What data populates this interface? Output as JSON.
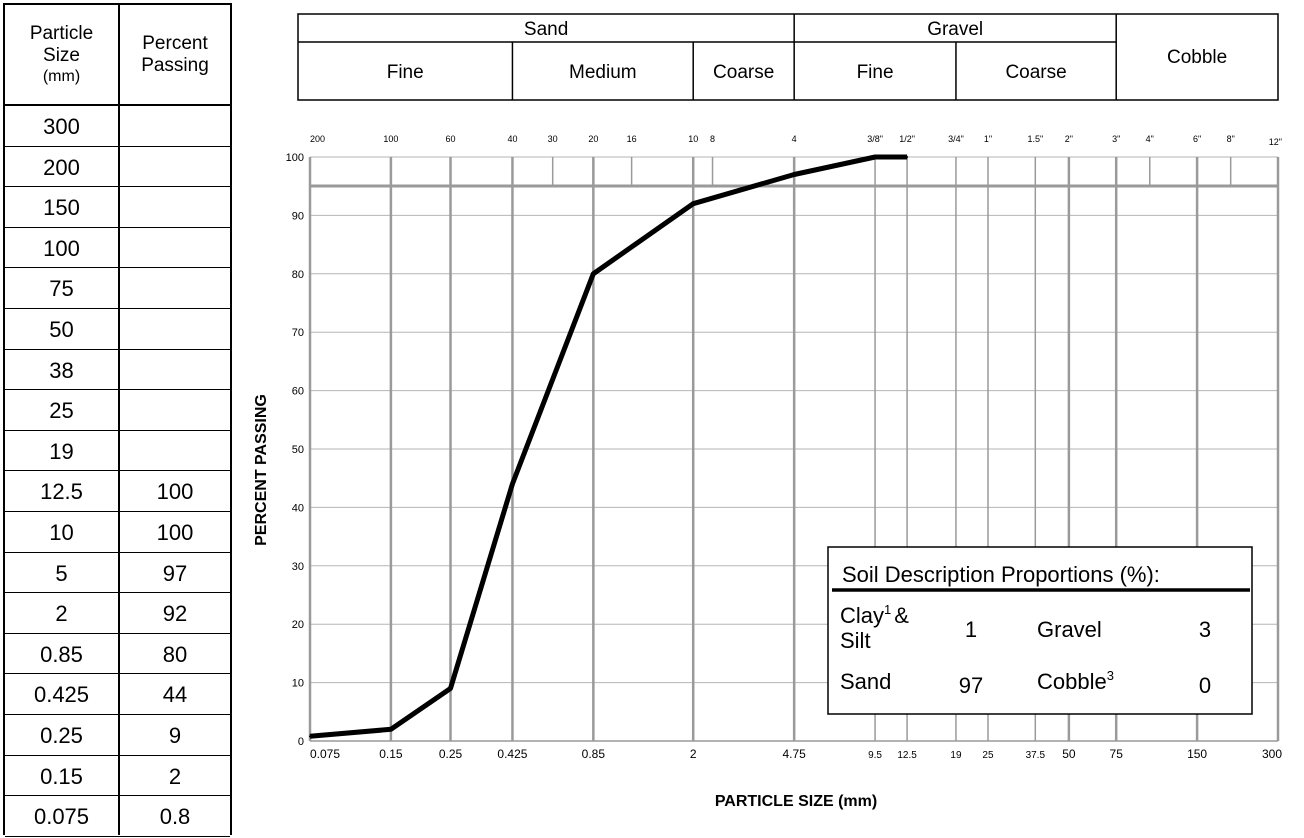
{
  "table": {
    "header_size": [
      "Particle",
      "Size",
      "(mm)"
    ],
    "header_passing": [
      "Percent",
      "Passing"
    ],
    "rows": [
      {
        "size": "300",
        "passing": ""
      },
      {
        "size": "200",
        "passing": ""
      },
      {
        "size": "150",
        "passing": ""
      },
      {
        "size": "100",
        "passing": ""
      },
      {
        "size": "75",
        "passing": ""
      },
      {
        "size": "50",
        "passing": ""
      },
      {
        "size": "38",
        "passing": ""
      },
      {
        "size": "25",
        "passing": ""
      },
      {
        "size": "19",
        "passing": ""
      },
      {
        "size": "12.5",
        "passing": "100"
      },
      {
        "size": "10",
        "passing": "100"
      },
      {
        "size": "5",
        "passing": "97"
      },
      {
        "size": "2",
        "passing": "92"
      },
      {
        "size": "0.85",
        "passing": "80"
      },
      {
        "size": "0.425",
        "passing": "44"
      },
      {
        "size": "0.25",
        "passing": "9"
      },
      {
        "size": "0.15",
        "passing": "2"
      },
      {
        "size": "0.075",
        "passing": "0.8"
      }
    ]
  },
  "classification": {
    "groups": [
      {
        "name": "Sand",
        "from": 0.075,
        "to": 4.75
      },
      {
        "name": "Gravel",
        "from": 4.75,
        "to": 75
      }
    ],
    "subgroups": [
      {
        "name": "Fine",
        "from": 0.075,
        "to": 0.425
      },
      {
        "name": "Medium",
        "from": 0.425,
        "to": 2
      },
      {
        "name": "Coarse",
        "from": 2,
        "to": 4.75
      },
      {
        "name": "Fine",
        "from": 4.75,
        "to": 19
      },
      {
        "name": "Coarse",
        "from": 19,
        "to": 75
      },
      {
        "name": "Cobble",
        "from": 75,
        "to": 300
      }
    ]
  },
  "chart_data": {
    "type": "line",
    "xscale": "log",
    "xlim": [
      0.075,
      300
    ],
    "ylim": [
      0,
      100
    ],
    "xlabel": "PARTICLE SIZE (mm)",
    "ylabel": "PERCENT PASSING",
    "grid": true,
    "yticks": [
      0,
      10,
      20,
      30,
      40,
      50,
      60,
      70,
      80,
      90,
      100
    ],
    "xticks_bottom": [
      {
        "v": 0.075,
        "t": "0.075",
        "big": true
      },
      {
        "v": 0.15,
        "t": "0.15",
        "big": true
      },
      {
        "v": 0.25,
        "t": "0.25",
        "big": true
      },
      {
        "v": 0.425,
        "t": "0.425",
        "big": true
      },
      {
        "v": 0.85,
        "t": "0.85",
        "big": true
      },
      {
        "v": 2,
        "t": "2",
        "big": true
      },
      {
        "v": 4.75,
        "t": "4.75",
        "big": true
      },
      {
        "v": 9.5,
        "t": "9.5",
        "big": false
      },
      {
        "v": 12.5,
        "t": "12.5",
        "big": false
      },
      {
        "v": 19,
        "t": "19",
        "big": false
      },
      {
        "v": 25,
        "t": "25",
        "big": false
      },
      {
        "v": 37.5,
        "t": "37.5",
        "big": false
      },
      {
        "v": 50,
        "t": "50",
        "big": true
      },
      {
        "v": 75,
        "t": "75",
        "big": true
      },
      {
        "v": 150,
        "t": "150",
        "big": true
      },
      {
        "v": 300,
        "t": "300",
        "big": true
      }
    ],
    "xticks_top": [
      {
        "v": 0.075,
        "t": "200"
      },
      {
        "v": 0.15,
        "t": "100"
      },
      {
        "v": 0.25,
        "t": "60"
      },
      {
        "v": 0.425,
        "t": "40"
      },
      {
        "v": 0.6,
        "t": "30"
      },
      {
        "v": 0.85,
        "t": "20"
      },
      {
        "v": 1.18,
        "t": "16"
      },
      {
        "v": 2,
        "t": "10"
      },
      {
        "v": 2.36,
        "t": "8"
      },
      {
        "v": 4.75,
        "t": "4"
      },
      {
        "v": 9.5,
        "t": "3/8\""
      },
      {
        "v": 12.5,
        "t": "1/2\""
      },
      {
        "v": 19,
        "t": "3/4\""
      },
      {
        "v": 25,
        "t": "1\""
      },
      {
        "v": 37.5,
        "t": "1.5\""
      },
      {
        "v": 50,
        "t": "2\""
      },
      {
        "v": 75,
        "t": "3\""
      },
      {
        "v": 100,
        "t": "4\""
      },
      {
        "v": 150,
        "t": "6\""
      },
      {
        "v": 200,
        "t": "8\""
      },
      {
        "v": 300,
        "t": "12\""
      }
    ],
    "series": [
      {
        "x": [
          0.075,
          0.15,
          0.25,
          0.425,
          0.85,
          2,
          4.75,
          9.5,
          12.5
        ],
        "y": [
          0.8,
          2,
          9,
          44,
          80,
          92,
          97,
          100,
          100
        ]
      }
    ],
    "legend_box": {
      "title": "Soil Description Proportions (%):",
      "clay_label_1": "Clay",
      "clay_sup": "1",
      "clay_label_amp": "&",
      "clay_label_2": "Silt",
      "clay_value": "1",
      "gravel_label": "Gravel",
      "gravel_value": "3",
      "sand_label": "Sand",
      "sand_value": "97",
      "cobble_label": "Cobble",
      "cobble_sup": "3",
      "cobble_value": "0"
    }
  }
}
